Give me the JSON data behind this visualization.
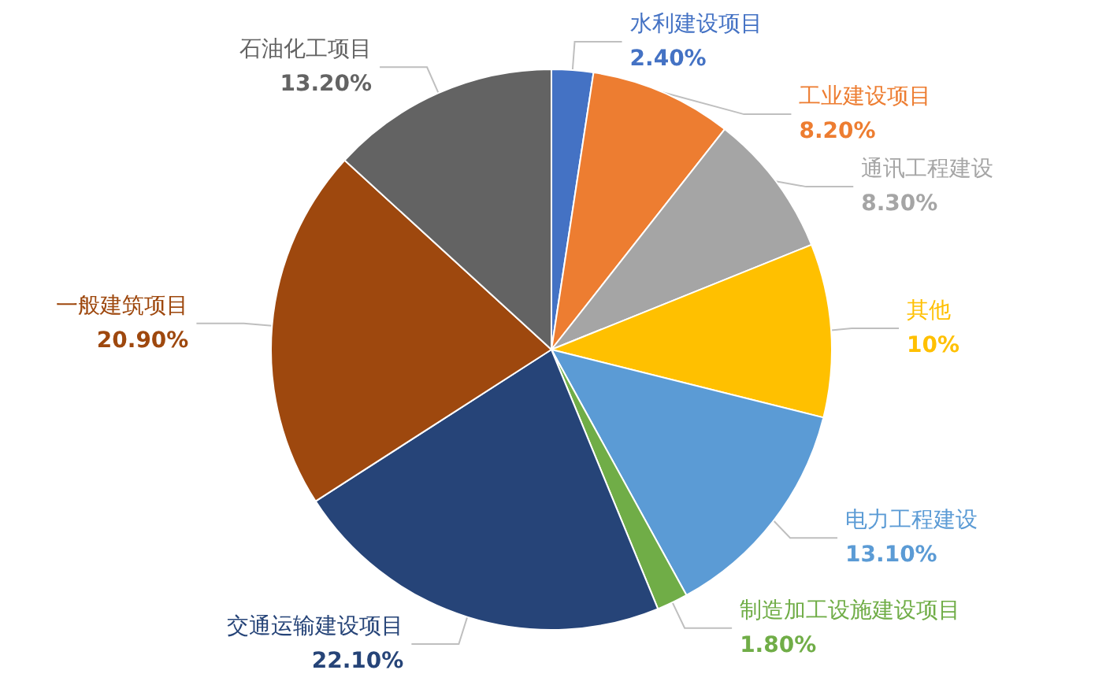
{
  "chart_data": {
    "type": "pie",
    "categories": [
      "水利建设项目",
      "工业建设项目",
      "通讯工程建设",
      "其他",
      "电力工程建设",
      "制造加工设施建设项目",
      "交通运输建设项目",
      "一般建筑项目",
      "石油化工项目"
    ],
    "values": [
      2.4,
      8.2,
      8.3,
      10,
      13.1,
      1.8,
      22.1,
      20.9,
      13.2
    ],
    "value_labels": [
      "2.40%",
      "8.20%",
      "8.30%",
      "10%",
      "13.10%",
      "1.80%",
      "22.10%",
      "20.90%",
      "13.20%"
    ],
    "colors": [
      "#4472c4",
      "#ed7d31",
      "#a5a5a5",
      "#ffc000",
      "#5b9bd5",
      "#70ad47",
      "#264478",
      "#9e480e",
      "#636363"
    ],
    "legend": false
  }
}
